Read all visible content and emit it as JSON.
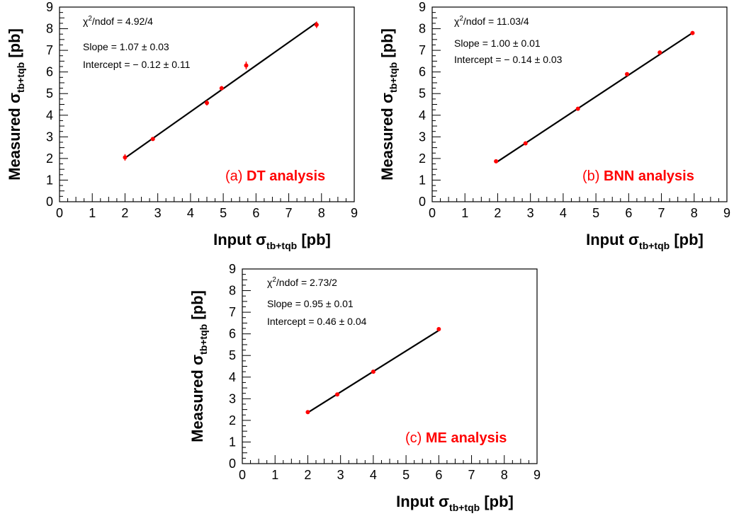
{
  "colors": {
    "point": "#ff0000",
    "fit_line": "#000000",
    "axis": "#000000",
    "label_accent": "#ff0000"
  },
  "chart_data": [
    {
      "type": "scatter",
      "panel_tag": "(a)",
      "panel_name": "DT analysis",
      "xlabel": {
        "main": "Input σ",
        "sub": "tb+tqb",
        "unit": "[pb]"
      },
      "ylabel": {
        "main": "Measured σ",
        "sub": "tb+tqb",
        "unit": "[pb]"
      },
      "xlim": [
        0,
        9
      ],
      "ylim": [
        0,
        9
      ],
      "xticks": [
        "0",
        "1",
        "2",
        "3",
        "4",
        "5",
        "6",
        "7",
        "8",
        "9"
      ],
      "yticks": [
        "0",
        "1",
        "2",
        "3",
        "4",
        "5",
        "6",
        "7",
        "8",
        "9"
      ],
      "annotations": [
        "χ²/ndof = 4.92/4",
        "Slope = 1.07 ± 0.03",
        "Intercept = − 0.12 ± 0.11"
      ],
      "points": [
        {
          "x": 2.0,
          "y": 2.05,
          "err": 0.15
        },
        {
          "x": 2.85,
          "y": 2.9,
          "err": 0.05
        },
        {
          "x": 4.5,
          "y": 4.57,
          "err": 0.12
        },
        {
          "x": 4.95,
          "y": 5.25,
          "err": 0.1
        },
        {
          "x": 5.7,
          "y": 6.3,
          "err": 0.18
        },
        {
          "x": 7.85,
          "y": 8.18,
          "err": 0.15
        }
      ],
      "fit": {
        "x": [
          2.0,
          7.85
        ],
        "y": [
          2.02,
          8.28
        ]
      }
    },
    {
      "type": "scatter",
      "panel_tag": "(b)",
      "panel_name": "BNN analysis",
      "xlabel": {
        "main": "Input σ",
        "sub": "tb+tqb",
        "unit": "[pb]"
      },
      "ylabel": {
        "main": "Measured σ",
        "sub": "tb+tqb",
        "unit": "[pb]"
      },
      "xlim": [
        0,
        9
      ],
      "ylim": [
        0,
        9
      ],
      "xticks": [
        "0",
        "1",
        "2",
        "3",
        "4",
        "5",
        "6",
        "7",
        "8",
        "9"
      ],
      "yticks": [
        "0",
        "1",
        "2",
        "3",
        "4",
        "5",
        "6",
        "7",
        "8",
        "9"
      ],
      "annotations": [
        "χ²/ndof = 11.03/4",
        "Slope = 1.00 ± 0.01",
        "Intercept = − 0.14 ± 0.03"
      ],
      "points": [
        {
          "x": 1.95,
          "y": 1.87,
          "err": 0.03
        },
        {
          "x": 2.85,
          "y": 2.7,
          "err": 0.03
        },
        {
          "x": 4.45,
          "y": 4.3,
          "err": 0.03
        },
        {
          "x": 5.95,
          "y": 5.9,
          "err": 0.03
        },
        {
          "x": 6.95,
          "y": 6.9,
          "err": 0.03
        },
        {
          "x": 7.95,
          "y": 7.8,
          "err": 0.03
        }
      ],
      "fit": {
        "x": [
          1.95,
          7.95
        ],
        "y": [
          1.81,
          7.81
        ]
      }
    },
    {
      "type": "scatter",
      "panel_tag": "(c)",
      "panel_name": "ME analysis",
      "xlabel": {
        "main": "Input σ",
        "sub": "tb+tqb",
        "unit": "[pb]"
      },
      "ylabel": {
        "main": "Measured σ",
        "sub": "tb+tqb",
        "unit": "[pb]"
      },
      "xlim": [
        0,
        9
      ],
      "ylim": [
        0,
        9
      ],
      "xticks": [
        "0",
        "1",
        "2",
        "3",
        "4",
        "5",
        "6",
        "7",
        "8",
        "9"
      ],
      "yticks": [
        "0",
        "1",
        "2",
        "3",
        "4",
        "5",
        "6",
        "7",
        "8",
        "9"
      ],
      "annotations": [
        "χ²/ndof = 2.73/2",
        "Slope = 0.95 ± 0.01",
        "Intercept = 0.46 ± 0.04"
      ],
      "points": [
        {
          "x": 2.0,
          "y": 2.38,
          "err": 0.03
        },
        {
          "x": 2.9,
          "y": 3.2,
          "err": 0.03
        },
        {
          "x": 4.0,
          "y": 4.25,
          "err": 0.03
        },
        {
          "x": 6.0,
          "y": 6.22,
          "err": 0.03
        }
      ],
      "fit": {
        "x": [
          2.0,
          6.0
        ],
        "y": [
          2.36,
          6.16
        ]
      }
    }
  ]
}
